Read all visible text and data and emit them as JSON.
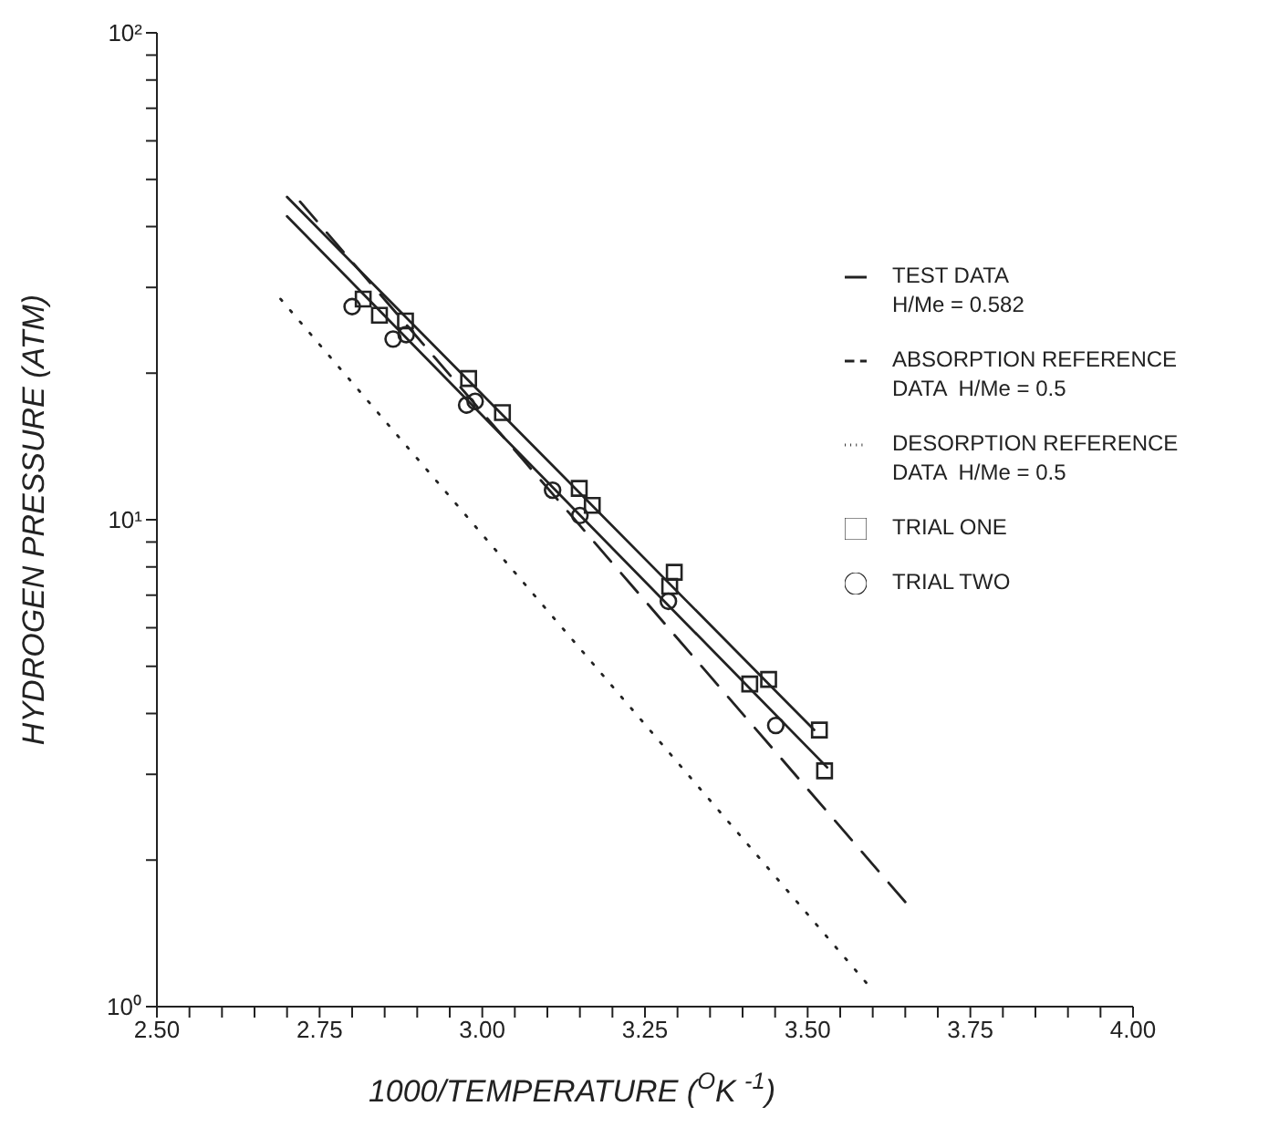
{
  "chart_data": {
    "type": "line",
    "xlabel": "1000/TEMPERATURE   ($^{O}$K $^{-1}$)",
    "ylabel": "HYDROGEN PRESSURE  (ATM)",
    "xlim": [
      2.5,
      4.0
    ],
    "xticks": [
      {
        "value": 2.5,
        "label": "2.50"
      },
      {
        "value": 2.55,
        "label": null
      },
      {
        "value": 2.6,
        "label": null
      },
      {
        "value": 2.65,
        "label": null
      },
      {
        "value": 2.7,
        "label": null
      },
      {
        "value": 2.75,
        "label": "2.75"
      },
      {
        "value": 2.8,
        "label": null
      },
      {
        "value": 2.85,
        "label": null
      },
      {
        "value": 2.9,
        "label": null
      },
      {
        "value": 2.95,
        "label": null
      },
      {
        "value": 3.0,
        "label": "3.00"
      },
      {
        "value": 3.05,
        "label": null
      },
      {
        "value": 3.1,
        "label": null
      },
      {
        "value": 3.15,
        "label": null
      },
      {
        "value": 3.2,
        "label": null
      },
      {
        "value": 3.25,
        "label": "3.25"
      },
      {
        "value": 3.3,
        "label": null
      },
      {
        "value": 3.35,
        "label": null
      },
      {
        "value": 3.4,
        "label": null
      },
      {
        "value": 3.45,
        "label": null
      },
      {
        "value": 3.5,
        "label": "3.50"
      },
      {
        "value": 3.55,
        "label": null
      },
      {
        "value": 3.6,
        "label": null
      },
      {
        "value": 3.65,
        "label": null
      },
      {
        "value": 3.7,
        "label": null
      },
      {
        "value": 3.75,
        "label": "3.75"
      },
      {
        "value": 3.8,
        "label": null
      },
      {
        "value": 3.85,
        "label": null
      },
      {
        "value": 3.9,
        "label": null
      },
      {
        "value": 3.95,
        "label": null
      },
      {
        "value": 4.0,
        "label": "4.00"
      }
    ],
    "ylim": [
      1,
      100
    ],
    "log": "y",
    "yticks": [
      {
        "value": 1,
        "label": "10⁰"
      },
      {
        "value": 2,
        "label": null
      },
      {
        "value": 3,
        "label": null
      },
      {
        "value": 4,
        "label": null
      },
      {
        "value": 5,
        "label": null
      },
      {
        "value": 6,
        "label": null
      },
      {
        "value": 7,
        "label": null
      },
      {
        "value": 8,
        "label": null
      },
      {
        "value": 9,
        "label": null
      },
      {
        "value": 10,
        "label": "10¹"
      },
      {
        "value": 20,
        "label": null
      },
      {
        "value": 30,
        "label": null
      },
      {
        "value": 40,
        "label": null
      },
      {
        "value": 50,
        "label": null
      },
      {
        "value": 60,
        "label": null
      },
      {
        "value": 70,
        "label": null
      },
      {
        "value": 80,
        "label": null
      },
      {
        "value": 90,
        "label": null
      },
      {
        "value": 100,
        "label": "10²"
      }
    ],
    "grid": false,
    "legend": "top right",
    "series": [
      {
        "name": "TEST DATA\nH/Me = 0.582",
        "line_style": "solid",
        "color": "#222222",
        "x": [
          2.7,
          3.51
        ],
        "values": [
          46,
          3.7
        ]
      },
      {
        "line_style": "solid",
        "color": "#222222",
        "x": [
          2.7,
          3.53
        ],
        "values": [
          42,
          3.1
        ]
      },
      {
        "name": "ABSORPTION REFERENCE\nDATA  H/Me = 0.5",
        "line_style": "dashed",
        "color": "#222222",
        "x": [
          2.72,
          3.65
        ],
        "values": [
          45,
          1.64
        ]
      },
      {
        "name": "DESORPTION REFERENCE\nDATA  H/Me = 0.5",
        "line_style": "dotted",
        "color": "#222222",
        "x": [
          2.69,
          3.59
        ],
        "values": [
          28.4,
          1.12
        ]
      },
      {
        "name": "TRIAL ONE",
        "type": "scatter",
        "marker": "square",
        "color": "#222222",
        "x": [
          2.817,
          2.842,
          2.882,
          2.979,
          3.031,
          3.149,
          3.169,
          3.288,
          3.295,
          3.411,
          3.44,
          3.518,
          3.526
        ],
        "values": [
          28.4,
          26.3,
          25.6,
          19.5,
          16.6,
          11.6,
          10.7,
          7.3,
          7.8,
          4.6,
          4.7,
          3.7,
          3.05
        ]
      },
      {
        "name": "TRIAL TWO",
        "type": "scatter",
        "marker": "circle",
        "color": "#222222",
        "x": [
          2.8,
          2.863,
          2.883,
          2.976,
          2.989,
          3.108,
          3.15,
          3.286,
          3.451
        ],
        "values": [
          27.4,
          23.5,
          24.0,
          17.2,
          17.5,
          11.5,
          10.2,
          6.8,
          3.78
        ]
      }
    ]
  }
}
